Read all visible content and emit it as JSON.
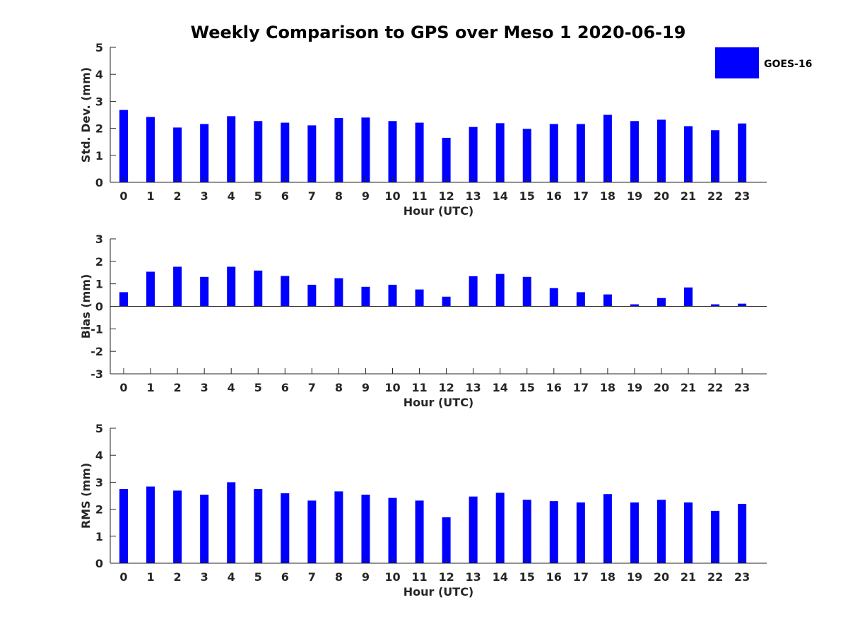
{
  "chart_data": {
    "type": "bar",
    "title": "Weekly Comparison to GPS over Meso 1 2020-06-19",
    "legend": {
      "entries": [
        "GOES-16"
      ],
      "placement": "top-right"
    },
    "series_color": "#0000ff",
    "categories": [
      "0",
      "1",
      "2",
      "3",
      "4",
      "5",
      "6",
      "7",
      "8",
      "9",
      "10",
      "11",
      "12",
      "13",
      "14",
      "15",
      "16",
      "17",
      "18",
      "19",
      "20",
      "21",
      "22",
      "23"
    ],
    "subplots": [
      {
        "id": "std",
        "ylabel": "Std. Dev. (mm)",
        "xlabel": "Hour (UTC)",
        "ylim": [
          0,
          5
        ],
        "yticks": [
          "0",
          "1",
          "2",
          "3",
          "4",
          "5"
        ],
        "series": [
          {
            "name": "GOES-16",
            "values": [
              2.68,
              2.42,
              2.03,
              2.16,
              2.45,
              2.27,
              2.21,
              2.11,
              2.38,
              2.4,
              2.27,
              2.21,
              1.65,
              2.05,
              2.19,
              1.98,
              2.16,
              2.16,
              2.5,
              2.27,
              2.32,
              2.08,
              1.93,
              2.18
            ]
          }
        ]
      },
      {
        "id": "bias",
        "ylabel": "Bias (mm)",
        "xlabel": "Hour (UTC)",
        "ylim": [
          -3,
          3
        ],
        "yticks": [
          "-3",
          "-2",
          "-1",
          "0",
          "1",
          "2",
          "3"
        ],
        "series": [
          {
            "name": "GOES-16",
            "values": [
              0.63,
              1.54,
              1.76,
              1.31,
              1.76,
              1.59,
              1.35,
              0.96,
              1.25,
              0.87,
              0.96,
              0.75,
              0.43,
              1.34,
              1.44,
              1.31,
              0.81,
              0.63,
              0.53,
              0.09,
              0.37,
              0.84,
              0.09,
              0.12
            ]
          }
        ]
      },
      {
        "id": "rms",
        "ylabel": "RMS (mm)",
        "xlabel": "Hour (UTC)",
        "ylim": [
          0,
          5
        ],
        "yticks": [
          "0",
          "1",
          "2",
          "3",
          "4",
          "5"
        ],
        "series": [
          {
            "name": "GOES-16",
            "values": [
              2.75,
              2.84,
              2.69,
              2.54,
              3.0,
              2.75,
              2.59,
              2.32,
              2.66,
              2.54,
              2.42,
              2.32,
              1.7,
              2.47,
              2.61,
              2.35,
              2.3,
              2.25,
              2.56,
              2.25,
              2.35,
              2.25,
              1.94,
              2.2
            ]
          }
        ]
      }
    ]
  }
}
